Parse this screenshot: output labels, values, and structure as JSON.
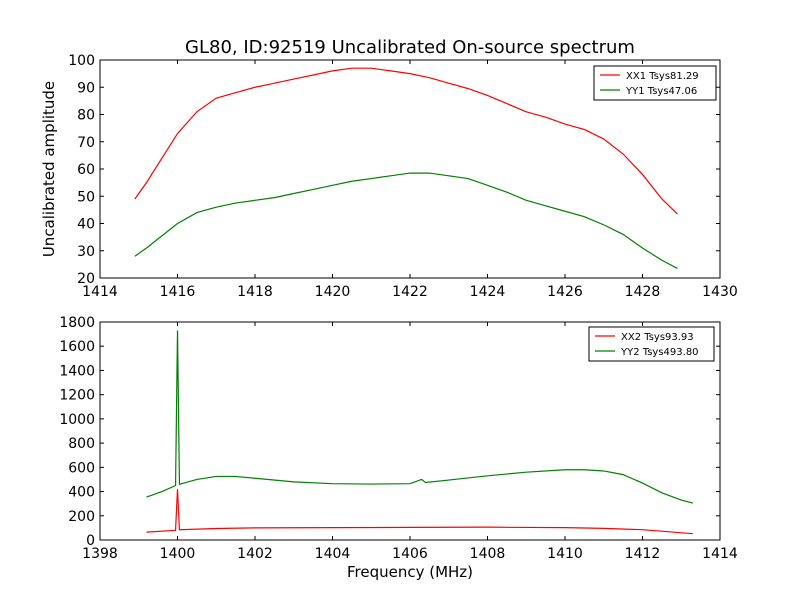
{
  "chart_data": [
    {
      "type": "line",
      "title": "GL80, ID:92519 Uncalibrated On-source spectrum",
      "xlabel": "",
      "ylabel": "Uncalibrated amplitude",
      "xlim": [
        1414,
        1430
      ],
      "ylim": [
        20,
        100
      ],
      "xticks": [
        "1414",
        "1416",
        "1418",
        "1420",
        "1422",
        "1424",
        "1426",
        "1428",
        "1430"
      ],
      "yticks": [
        "20",
        "30",
        "40",
        "50",
        "60",
        "70",
        "80",
        "90",
        "100"
      ],
      "grid": false,
      "legend_position": "top-right",
      "series": [
        {
          "name": "XX1 Tsys81.29",
          "color": "#ff0000",
          "x": [
            1414.9,
            1415.2,
            1415.6,
            1416.0,
            1416.5,
            1417.0,
            1417.5,
            1418.0,
            1418.5,
            1419.0,
            1419.5,
            1420.0,
            1420.5,
            1421.0,
            1421.5,
            1422.0,
            1422.5,
            1423.0,
            1423.5,
            1424.0,
            1424.5,
            1425.0,
            1425.5,
            1426.0,
            1426.5,
            1427.0,
            1427.5,
            1428.0,
            1428.5,
            1428.9
          ],
          "y": [
            49,
            55,
            64,
            73,
            81,
            86,
            88,
            90,
            91.5,
            93,
            94.5,
            96,
            97,
            97,
            96,
            95,
            93.5,
            91.5,
            89.5,
            87,
            84,
            81,
            79,
            76.5,
            74.5,
            71,
            65.5,
            58,
            49,
            43.5
          ]
        },
        {
          "name": "YY1 Tsys47.06",
          "color": "#008000",
          "x": [
            1414.9,
            1415.2,
            1415.6,
            1416.0,
            1416.5,
            1417.0,
            1417.5,
            1418.0,
            1418.5,
            1419.0,
            1419.5,
            1420.0,
            1420.5,
            1421.0,
            1421.5,
            1422.0,
            1422.5,
            1423.0,
            1423.5,
            1424.0,
            1424.5,
            1425.0,
            1425.5,
            1426.0,
            1426.5,
            1427.0,
            1427.5,
            1428.0,
            1428.5,
            1428.9
          ],
          "y": [
            28,
            31,
            35.5,
            40,
            44,
            46,
            47.5,
            48.5,
            49.5,
            51,
            52.5,
            54,
            55.5,
            56.5,
            57.5,
            58.5,
            58.5,
            57.5,
            56.5,
            54,
            51.5,
            48.5,
            46.5,
            44.5,
            42.5,
            39.5,
            36,
            31,
            26.5,
            23.5
          ]
        }
      ]
    },
    {
      "type": "line",
      "title": "",
      "xlabel": "Frequency (MHz)",
      "ylabel": "",
      "xlim": [
        1398,
        1414
      ],
      "ylim": [
        0,
        1800
      ],
      "xticks": [
        "1398",
        "1400",
        "1402",
        "1404",
        "1406",
        "1408",
        "1410",
        "1412",
        "1414"
      ],
      "yticks": [
        "0",
        "200",
        "400",
        "600",
        "800",
        "1000",
        "1200",
        "1400",
        "1600",
        "1800"
      ],
      "grid": false,
      "legend_position": "top-right",
      "series": [
        {
          "name": "XX2 Tsys93.93",
          "color": "#ff0000",
          "x": [
            1399.2,
            1399.95,
            1400.0,
            1400.05,
            1401.0,
            1402.0,
            1404.0,
            1406.0,
            1408.0,
            1410.0,
            1411.0,
            1412.0,
            1413.3
          ],
          "y": [
            65,
            80,
            420,
            85,
            95,
            100,
            102,
            104,
            106,
            102,
            96,
            85,
            52
          ]
        },
        {
          "name": "YY2 Tsys493.80",
          "color": "#008000",
          "x": [
            1399.2,
            1399.6,
            1399.95,
            1400.0,
            1400.05,
            1400.5,
            1401.0,
            1401.5,
            1402.0,
            1403.0,
            1404.0,
            1405.0,
            1406.0,
            1406.3,
            1406.4,
            1407.0,
            1408.0,
            1409.0,
            1410.0,
            1410.5,
            1411.0,
            1411.5,
            1412.0,
            1412.5,
            1413.0,
            1413.3
          ],
          "y": [
            355,
            400,
            450,
            1730,
            460,
            500,
            525,
            525,
            510,
            480,
            465,
            462,
            465,
            500,
            475,
            495,
            530,
            560,
            580,
            580,
            570,
            540,
            470,
            390,
            330,
            305
          ]
        }
      ]
    }
  ]
}
